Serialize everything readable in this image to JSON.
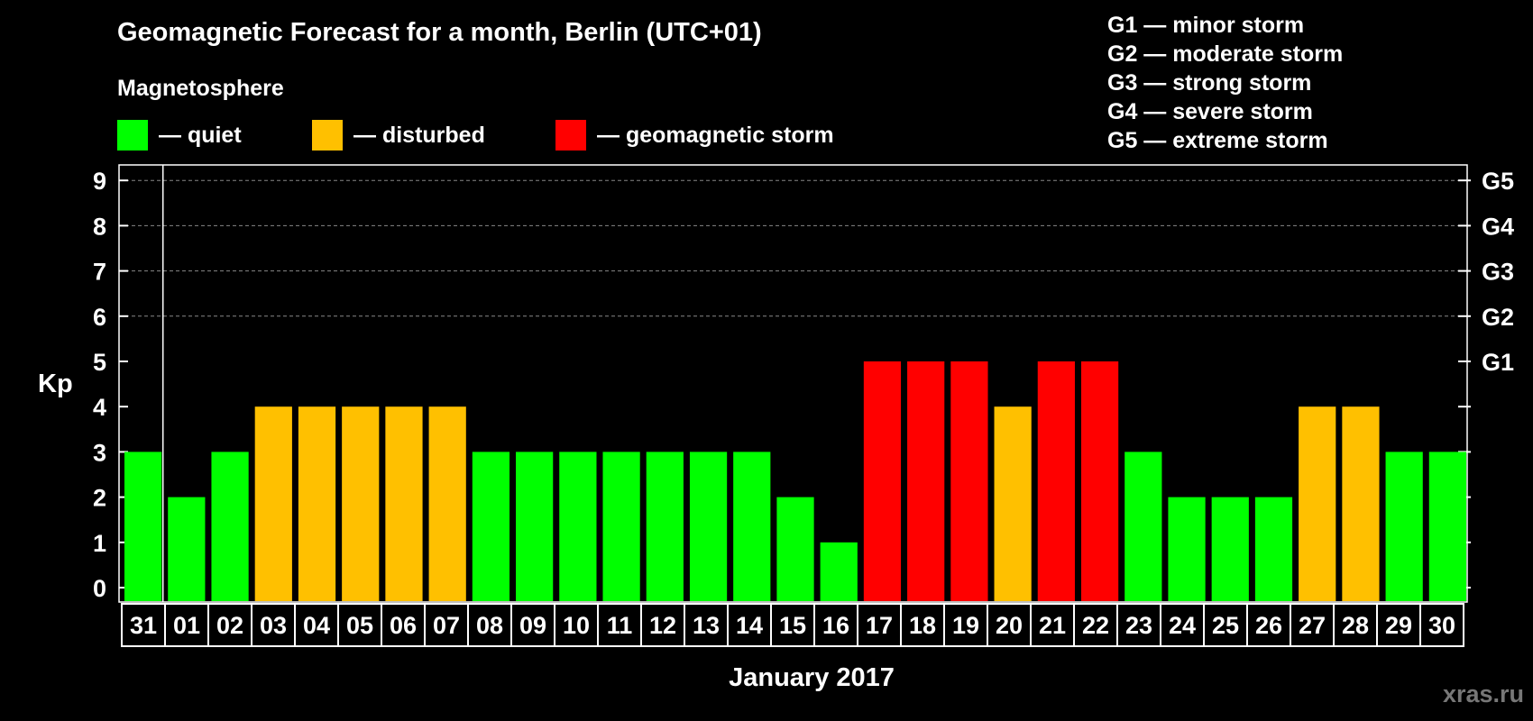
{
  "chart_data": {
    "type": "bar",
    "title": "Geomagnetic Forecast for a month, Berlin (UTC+01)",
    "subtitle": "Magnetosphere",
    "xlabel": "January 2017",
    "ylabel": "Kp",
    "ylim": [
      0,
      9
    ],
    "yticks": [
      "0",
      "1",
      "2",
      "3",
      "4",
      "5",
      "6",
      "7",
      "8",
      "9"
    ],
    "right_ticks": [
      {
        "kp": 5,
        "label": "G1"
      },
      {
        "kp": 6,
        "label": "G2"
      },
      {
        "kp": 7,
        "label": "G3"
      },
      {
        "kp": 8,
        "label": "G4"
      },
      {
        "kp": 9,
        "label": "G5"
      }
    ],
    "categories": [
      "31",
      "01",
      "02",
      "03",
      "04",
      "05",
      "06",
      "07",
      "08",
      "09",
      "10",
      "11",
      "12",
      "13",
      "14",
      "15",
      "16",
      "17",
      "18",
      "19",
      "20",
      "21",
      "22",
      "23",
      "24",
      "25",
      "26",
      "27",
      "28",
      "29",
      "30"
    ],
    "values": [
      3,
      2,
      3,
      4,
      4,
      4,
      4,
      4,
      3,
      3,
      3,
      3,
      3,
      3,
      3,
      2,
      1,
      5,
      5,
      5,
      4,
      5,
      5,
      3,
      2,
      2,
      2,
      4,
      4,
      3,
      3
    ],
    "colors": {
      "quiet": "#00ff00",
      "disturbed": "#ffc000",
      "storm": "#ff0000"
    },
    "legend": [
      {
        "key": "quiet",
        "label": "— quiet"
      },
      {
        "key": "disturbed",
        "label": "— disturbed"
      },
      {
        "key": "storm",
        "label": "— geomagnetic storm"
      }
    ],
    "storm_scale": [
      "G1 — minor storm",
      "G2 — moderate storm",
      "G3 — strong storm",
      "G4 — severe storm",
      "G5 — extreme storm"
    ]
  },
  "watermark": "xras.ru"
}
